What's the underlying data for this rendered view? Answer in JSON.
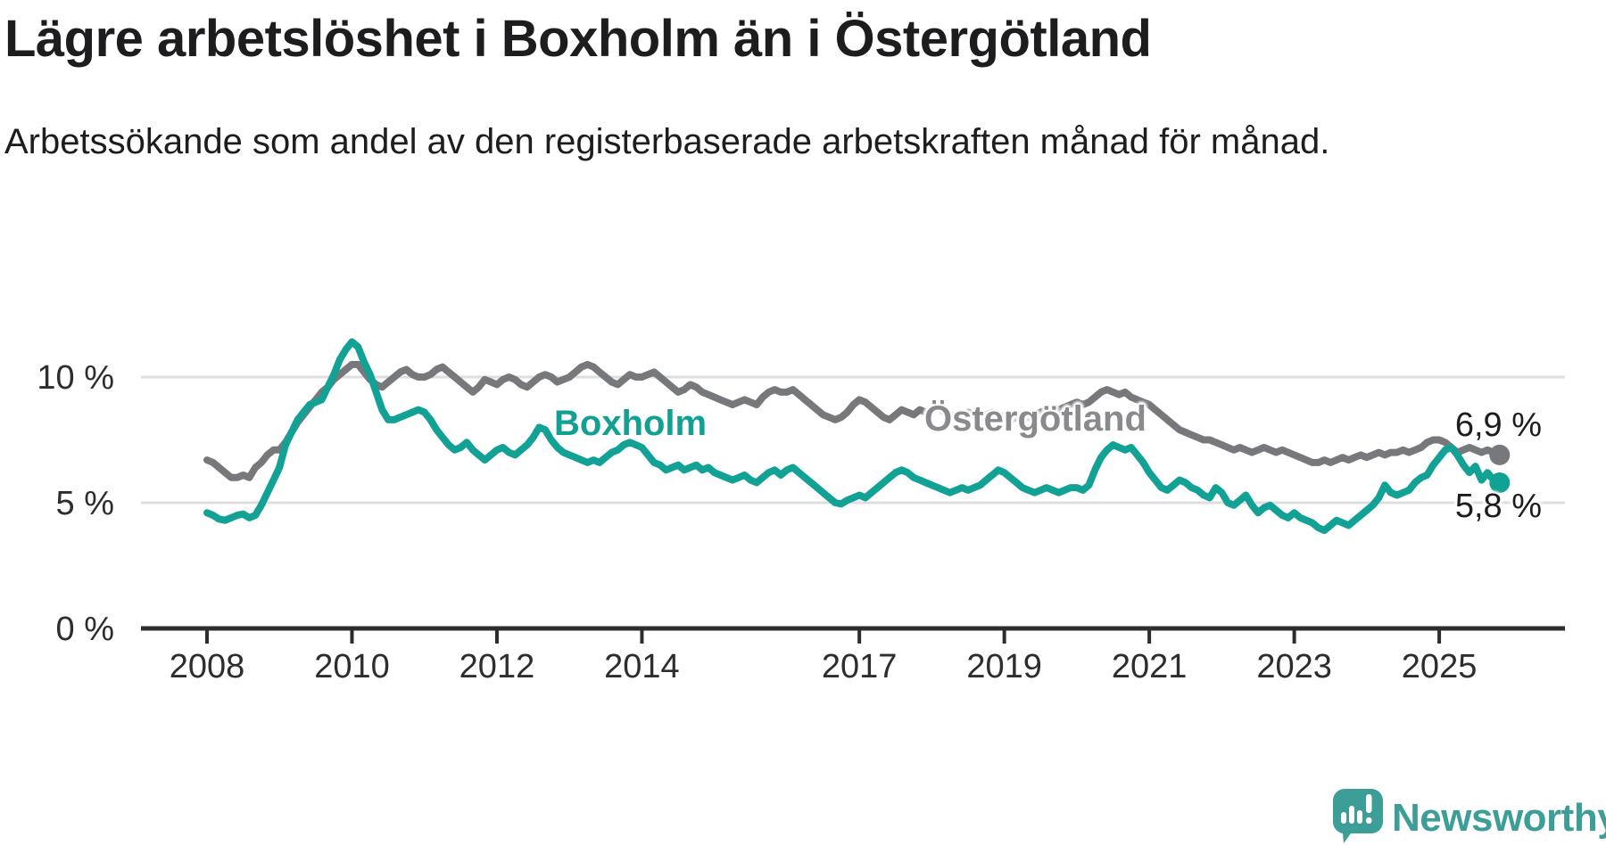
{
  "title": "Lägre arbetslöshet i Boxholm än i Östergötland",
  "subtitle": "Arbetssökande som andel av den registerbaserade arbetskraften månad för månad.",
  "footer": {
    "brand": "Newsworthy",
    "logo_icon": "speech-bubble-bar-chart"
  },
  "colors": {
    "boxholm": "#12a195",
    "ostergotland": "#77787c",
    "boxholm_label": "#12a092",
    "ostergotland_label": "#8a8a8e",
    "axis": "#2d2d30",
    "grid": "#dedede",
    "text": "#1d1d1f",
    "brand": "#3d9e97"
  },
  "chart_data": {
    "type": "line",
    "unit": "%",
    "frequency": "monthly",
    "x_start": "2008-01",
    "x_end": "2025-11",
    "grid": true,
    "ylim": [
      0,
      12.5
    ],
    "y_ticks": [
      {
        "label": "0 %",
        "value": 0
      },
      {
        "label": "5 %",
        "value": 5
      },
      {
        "label": "10 %",
        "value": 10
      }
    ],
    "x_ticks": [
      {
        "label": "2008",
        "year": 2008
      },
      {
        "label": "2010",
        "year": 2010
      },
      {
        "label": "2012",
        "year": 2012
      },
      {
        "label": "2014",
        "year": 2014
      },
      {
        "label": "2017",
        "year": 2017
      },
      {
        "label": "2019",
        "year": 2019
      },
      {
        "label": "2021",
        "year": 2021
      },
      {
        "label": "2023",
        "year": 2023
      },
      {
        "label": "2025",
        "year": 2025
      }
    ],
    "series": [
      {
        "name": "Boxholm",
        "color": "#12a195",
        "end_label": "5,8 %",
        "end_value": 5.8,
        "values": [
          4.6,
          4.5,
          4.35,
          4.3,
          4.4,
          4.5,
          4.55,
          4.4,
          4.5,
          4.9,
          5.4,
          5.9,
          6.4,
          7.3,
          7.8,
          8.3,
          8.6,
          8.9,
          9.0,
          9.1,
          9.6,
          10.1,
          10.7,
          11.1,
          11.4,
          11.2,
          10.6,
          10.1,
          9.4,
          8.7,
          8.3,
          8.3,
          8.4,
          8.5,
          8.6,
          8.7,
          8.6,
          8.3,
          7.9,
          7.6,
          7.3,
          7.1,
          7.2,
          7.4,
          7.1,
          6.9,
          6.7,
          6.9,
          7.1,
          7.2,
          7.0,
          6.9,
          7.1,
          7.3,
          7.6,
          8.0,
          7.9,
          7.5,
          7.2,
          7.0,
          6.9,
          6.8,
          6.7,
          6.6,
          6.7,
          6.6,
          6.8,
          7.0,
          7.1,
          7.3,
          7.4,
          7.3,
          7.2,
          6.9,
          6.6,
          6.5,
          6.3,
          6.4,
          6.5,
          6.3,
          6.4,
          6.5,
          6.3,
          6.4,
          6.2,
          6.1,
          6.0,
          5.9,
          6.0,
          6.1,
          5.9,
          5.8,
          6.0,
          6.2,
          6.3,
          6.1,
          6.3,
          6.4,
          6.2,
          6.0,
          5.8,
          5.6,
          5.4,
          5.2,
          5.0,
          4.95,
          5.1,
          5.2,
          5.3,
          5.2,
          5.4,
          5.6,
          5.8,
          6.0,
          6.2,
          6.3,
          6.2,
          6.0,
          5.9,
          5.8,
          5.7,
          5.6,
          5.5,
          5.4,
          5.5,
          5.6,
          5.5,
          5.6,
          5.7,
          5.9,
          6.1,
          6.3,
          6.2,
          6.0,
          5.8,
          5.6,
          5.5,
          5.4,
          5.5,
          5.6,
          5.5,
          5.4,
          5.5,
          5.6,
          5.6,
          5.5,
          5.7,
          6.3,
          6.8,
          7.1,
          7.3,
          7.2,
          7.1,
          7.2,
          6.9,
          6.6,
          6.2,
          5.9,
          5.6,
          5.5,
          5.7,
          5.9,
          5.8,
          5.6,
          5.5,
          5.3,
          5.2,
          5.6,
          5.4,
          5.0,
          4.9,
          5.1,
          5.3,
          4.9,
          4.6,
          4.8,
          4.9,
          4.7,
          4.5,
          4.4,
          4.6,
          4.4,
          4.3,
          4.2,
          4.0,
          3.9,
          4.1,
          4.3,
          4.2,
          4.1,
          4.3,
          4.5,
          4.7,
          4.9,
          5.2,
          5.7,
          5.4,
          5.3,
          5.4,
          5.5,
          5.8,
          6.0,
          6.1,
          6.5,
          6.8,
          7.1,
          7.2,
          6.9,
          6.5,
          6.2,
          6.45,
          5.9,
          6.2,
          5.9,
          5.8
        ]
      },
      {
        "name": "Östergötland",
        "color": "#77787c",
        "end_label": "6,9 %",
        "end_value": 6.9,
        "values": [
          6.7,
          6.6,
          6.4,
          6.2,
          6.0,
          6.0,
          6.1,
          6.0,
          6.4,
          6.6,
          6.9,
          7.1,
          7.1,
          7.4,
          7.8,
          8.2,
          8.5,
          8.8,
          9.1,
          9.4,
          9.6,
          9.9,
          10.1,
          10.3,
          10.5,
          10.5,
          10.2,
          9.9,
          9.7,
          9.6,
          9.8,
          10.0,
          10.2,
          10.3,
          10.1,
          10.0,
          10.0,
          10.1,
          10.3,
          10.4,
          10.2,
          10.0,
          9.8,
          9.6,
          9.4,
          9.6,
          9.9,
          9.8,
          9.7,
          9.9,
          10.0,
          9.9,
          9.7,
          9.6,
          9.8,
          10.0,
          10.1,
          10.0,
          9.8,
          9.9,
          10.0,
          10.2,
          10.4,
          10.5,
          10.4,
          10.2,
          10.0,
          9.8,
          9.7,
          9.9,
          10.1,
          10.0,
          10.0,
          10.1,
          10.2,
          10.0,
          9.8,
          9.6,
          9.4,
          9.5,
          9.7,
          9.6,
          9.4,
          9.3,
          9.2,
          9.1,
          9.0,
          8.9,
          9.0,
          9.1,
          9.0,
          8.9,
          9.2,
          9.4,
          9.5,
          9.4,
          9.4,
          9.5,
          9.3,
          9.1,
          8.9,
          8.7,
          8.5,
          8.4,
          8.3,
          8.4,
          8.6,
          8.9,
          9.1,
          9.0,
          8.8,
          8.6,
          8.4,
          8.3,
          8.5,
          8.7,
          8.6,
          8.5,
          8.7,
          8.6,
          8.7,
          8.8,
          8.6,
          8.5,
          8.4,
          8.5,
          8.6,
          8.5,
          8.4,
          8.5,
          8.6,
          8.5,
          8.4,
          8.3,
          8.4,
          8.5,
          8.4,
          8.5,
          8.6,
          8.7,
          8.6,
          8.7,
          8.8,
          8.9,
          9.0,
          8.9,
          9.0,
          9.2,
          9.4,
          9.5,
          9.4,
          9.3,
          9.4,
          9.2,
          9.1,
          9.0,
          8.9,
          8.7,
          8.5,
          8.3,
          8.1,
          7.9,
          7.8,
          7.7,
          7.6,
          7.5,
          7.5,
          7.4,
          7.3,
          7.2,
          7.1,
          7.2,
          7.1,
          7.0,
          7.1,
          7.2,
          7.1,
          7.0,
          7.1,
          7.0,
          6.9,
          6.8,
          6.7,
          6.6,
          6.6,
          6.7,
          6.6,
          6.7,
          6.8,
          6.7,
          6.8,
          6.9,
          6.8,
          6.9,
          7.0,
          6.9,
          7.0,
          7.0,
          7.1,
          7.0,
          7.1,
          7.2,
          7.4,
          7.5,
          7.5,
          7.4,
          7.2,
          7.0,
          7.1,
          7.2,
          7.1,
          7.0,
          7.1,
          7.0,
          6.9
        ]
      }
    ]
  }
}
